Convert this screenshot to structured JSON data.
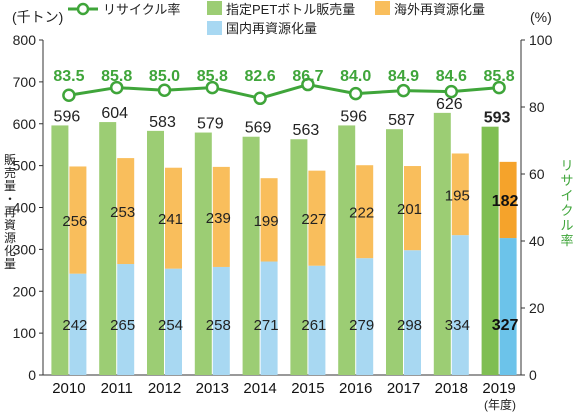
{
  "chart_data": {
    "type": "bar+line",
    "categories": [
      "2010",
      "2011",
      "2012",
      "2013",
      "2014",
      "2015",
      "2016",
      "2017",
      "2018",
      "2019"
    ],
    "x_unit": "(年度)",
    "left_axis": {
      "label": "(千トン)",
      "range": [
        0,
        800
      ],
      "ticks": [
        0,
        100,
        200,
        300,
        400,
        500,
        600,
        700,
        800
      ],
      "title": "販売量・再資源化量"
    },
    "right_axis": {
      "label": "(%)",
      "range": [
        0,
        100
      ],
      "ticks": [
        0,
        20,
        40,
        60,
        80,
        100
      ],
      "title": "リサイクル率"
    },
    "series": [
      {
        "name": "指定PETボトル販売量",
        "type": "bar",
        "axis": "left",
        "color": "#9ccd74",
        "values": [
          596,
          604,
          583,
          579,
          569,
          563,
          596,
          587,
          626,
          593
        ]
      },
      {
        "name": "国内再資源化量",
        "type": "stacked-bar",
        "axis": "left",
        "color": "#a8d8f2",
        "values": [
          242,
          265,
          254,
          258,
          271,
          261,
          279,
          298,
          334,
          327
        ]
      },
      {
        "name": "海外再資源化量",
        "type": "stacked-bar",
        "axis": "left",
        "color": "#f9be5c",
        "values": [
          256,
          253,
          241,
          239,
          199,
          227,
          222,
          201,
          195,
          182
        ]
      },
      {
        "name": "リサイクル率",
        "type": "line",
        "axis": "right",
        "color": "#3fa53a",
        "values": [
          83.5,
          85.8,
          85.0,
          85.8,
          82.6,
          86.7,
          84.0,
          84.9,
          84.6,
          85.8
        ]
      }
    ],
    "highlight_last": true,
    "grid": false,
    "legend": "top"
  }
}
